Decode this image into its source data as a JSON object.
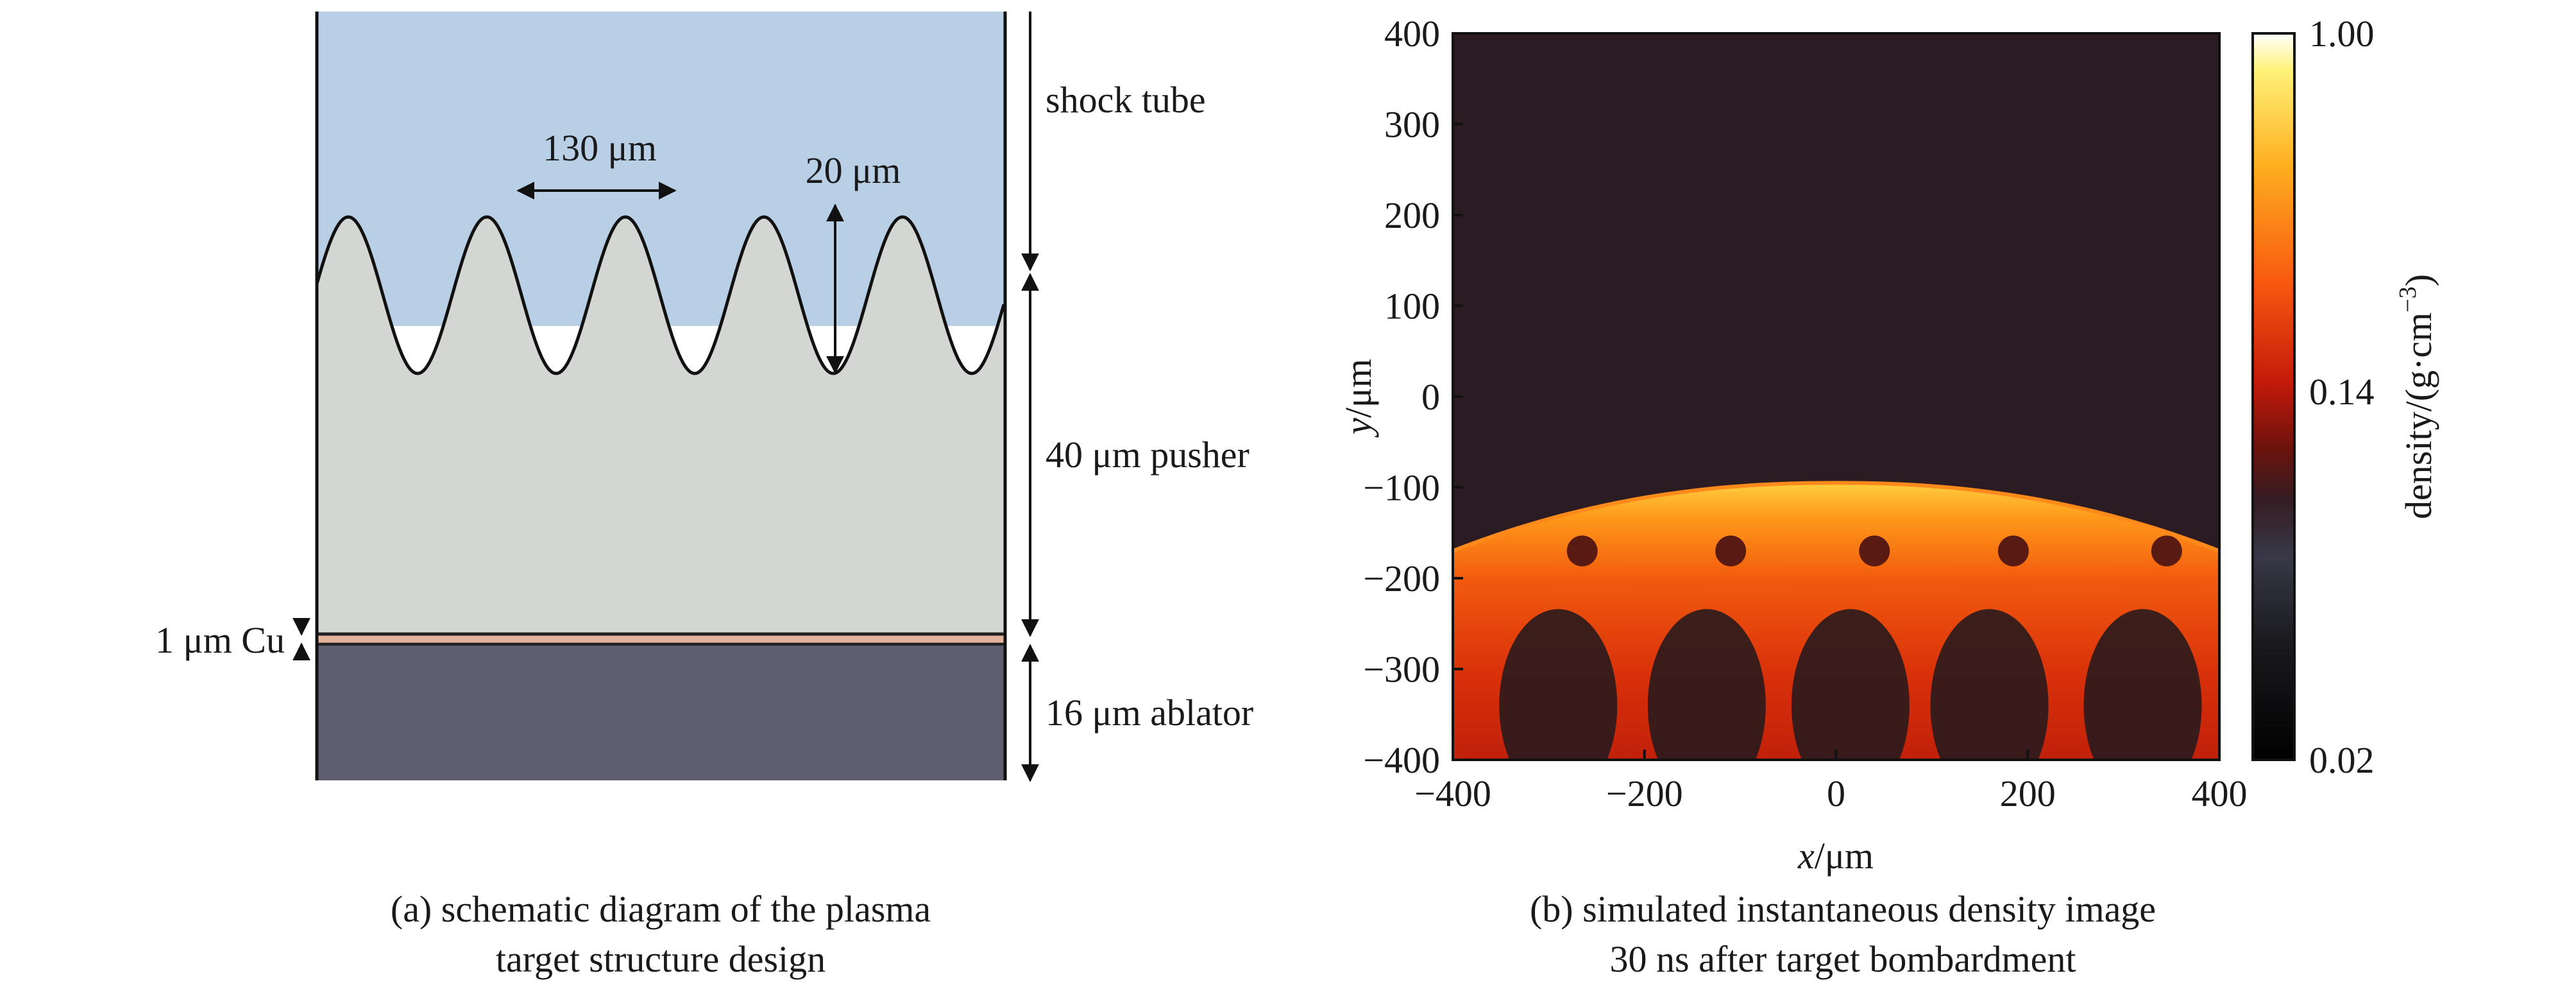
{
  "panel_a": {
    "labels": {
      "wavelength": "130 μm",
      "amplitude": "20 μm",
      "shock_tube": "shock tube",
      "pusher": "40 μm pusher",
      "cu_layer": "1 μm Cu",
      "ablator": "16 μm ablator"
    },
    "colors": {
      "shock_tube": "#b9cfe6",
      "pusher": "#d4d6d4",
      "cu_layer": "#e3b39b",
      "ablator": "#5f5e6e"
    },
    "caption": {
      "line1": "(a) schematic diagram of the plasma",
      "line2": "target structure design"
    }
  },
  "chart_data": {
    "type": "heatmap",
    "xlabel_var": "x",
    "xlabel_unit": "/μm",
    "ylabel_var": "y",
    "ylabel_unit": "/μm",
    "xlim": [
      -400,
      400
    ],
    "ylim": [
      -400,
      400
    ],
    "x_ticks": [
      -400,
      -200,
      0,
      200,
      400
    ],
    "y_ticks": [
      400,
      300,
      200,
      100,
      0,
      -100,
      -200,
      -300,
      -400
    ],
    "x_tick_labels": [
      "−400",
      "−200",
      "0",
      "200",
      "400"
    ],
    "y_tick_labels": [
      "400",
      "300",
      "200",
      "100",
      "0",
      "−100",
      "−200",
      "−300",
      "−400"
    ],
    "colorbar": {
      "label": "density/(g·cm",
      "label_exp": "−3",
      "label_end": ")",
      "tick_values": [
        1.0,
        0.14,
        0.02
      ],
      "tick_labels": [
        "1.00",
        "0.14",
        "0.02"
      ],
      "colors": [
        "#ffffff",
        "#fff27a",
        "#ffb020",
        "#f85a10",
        "#c41a0a",
        "#6e120c",
        "#351c22",
        "#383848",
        "#1a1a1e",
        "#000000"
      ]
    },
    "background_color": "#2a1c22",
    "legend": "right",
    "caption": {
      "line1": "(b) simulated instantaneous density image",
      "line2": "30 ns after target bombardment"
    }
  }
}
